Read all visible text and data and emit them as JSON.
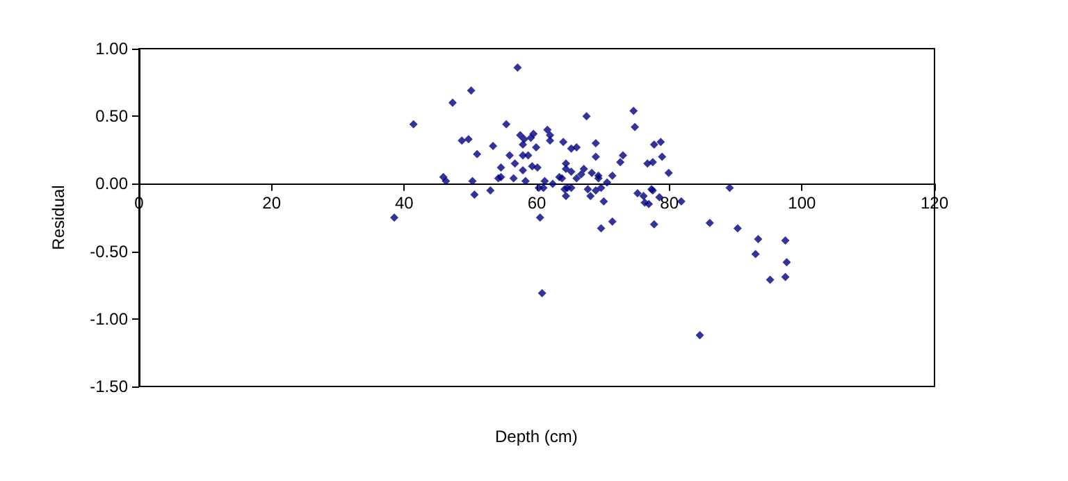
{
  "chart_data": {
    "type": "scatter",
    "xlabel": "Depth (cm)",
    "ylabel": "Residual",
    "xlim": [
      0,
      120
    ],
    "xticks": [
      0,
      20,
      40,
      60,
      80,
      100,
      120
    ],
    "ylim": [
      -1.5,
      1
    ],
    "yticks": [
      {
        "value": 1,
        "label": "1.00"
      },
      {
        "value": 0.5,
        "label": "0.50"
      },
      {
        "value": 0,
        "label": "0.00"
      },
      {
        "value": -0.5,
        "label": "-0.50"
      },
      {
        "value": -1,
        "label": "-1.00"
      },
      {
        "value": -1.5,
        "label": "-1.50"
      }
    ],
    "marker": "diamond",
    "series": [
      {
        "color": "#000080",
        "x": [
          38.5,
          41.4,
          45.9,
          46.3,
          47.3,
          48.7,
          49.7,
          50.1,
          50.3,
          50.6,
          51.0,
          53.0,
          53.4,
          54.2,
          54.6,
          54.6,
          55.4,
          55.9,
          56.5,
          56.7,
          57.1,
          57.5,
          57.9,
          57.9,
          57.9,
          58.1,
          58.3,
          58.7,
          59.1,
          59.3,
          59.5,
          59.9,
          60.1,
          60.3,
          60.5,
          60.8,
          61.0,
          61.2,
          61.6,
          62.0,
          62.0,
          62.4,
          63.4,
          63.8,
          64.0,
          64.2,
          64.4,
          64.4,
          64.4,
          64.6,
          65.2,
          65.2,
          65.2,
          66.0,
          66.0,
          66.7,
          67.5,
          67.1,
          68.3,
          68.9,
          68.9,
          69.3,
          69.3,
          69.7,
          68.9,
          67.7,
          68.1,
          70.1,
          69.7,
          71.4,
          70.6,
          71.4,
          72.6,
          73.0,
          74.6,
          74.8,
          75.2,
          76.1,
          76.3,
          76.9,
          76.7,
          77.5,
          77.7,
          78.7,
          78.9,
          77.3,
          77.5,
          77.7,
          78.5,
          79.9,
          81.8,
          89.1,
          86.1,
          90.3,
          93.4,
          93.0,
          97.5,
          97.7,
          95.2,
          97.5,
          84.6
        ],
        "values": [
          -0.25,
          0.44,
          0.05,
          0.02,
          0.6,
          0.32,
          0.33,
          0.69,
          0.02,
          -0.08,
          0.22,
          -0.05,
          0.28,
          0.04,
          0.05,
          0.12,
          0.44,
          0.21,
          0.04,
          0.15,
          0.86,
          0.36,
          0.29,
          0.21,
          0.1,
          0.33,
          0.02,
          0.21,
          0.34,
          0.13,
          0.37,
          0.27,
          0.12,
          -0.03,
          -0.25,
          -0.81,
          -0.03,
          0.02,
          0.4,
          0.36,
          0.32,
          0.0,
          0.05,
          0.04,
          0.31,
          -0.04,
          -0.09,
          0.15,
          0.11,
          -0.03,
          0.09,
          -0.03,
          0.26,
          0.04,
          0.27,
          0.07,
          0.5,
          0.11,
          0.08,
          0.3,
          0.2,
          0.06,
          0.04,
          -0.03,
          -0.05,
          -0.04,
          -0.09,
          -0.13,
          -0.33,
          -0.28,
          0.01,
          0.06,
          0.16,
          0.21,
          0.54,
          0.42,
          -0.07,
          -0.09,
          -0.14,
          -0.15,
          0.15,
          0.16,
          0.29,
          0.31,
          0.2,
          -0.04,
          -0.05,
          -0.3,
          -0.1,
          0.08,
          -0.13,
          -0.03,
          -0.29,
          -0.33,
          -0.41,
          -0.52,
          -0.42,
          -0.58,
          -0.71,
          -0.69,
          -1.12
        ]
      }
    ]
  }
}
